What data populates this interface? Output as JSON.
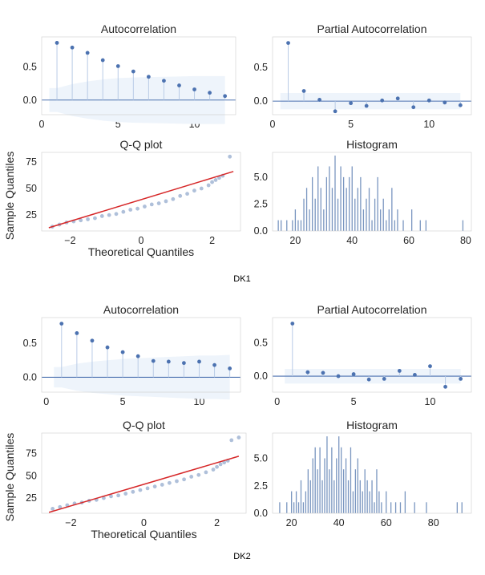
{
  "colors": {
    "point": "#4c72b0",
    "stem": "#b9cbe6",
    "band": "#eef4fb",
    "axis_line": "#8a8a8a",
    "zero_line": "#4c72b0",
    "qq_point": "#a6b9d6",
    "qq_line": "#d62728",
    "hist_bar": "#7a96c0"
  },
  "chart_data": [
    {
      "type": "scatter",
      "panel": "DK1 ACF",
      "title": "Autocorrelation",
      "x": [
        1,
        2,
        3,
        4,
        5,
        6,
        7,
        8,
        9,
        10,
        11,
        12
      ],
      "values": [
        0.86,
        0.79,
        0.71,
        0.6,
        0.51,
        0.43,
        0.35,
        0.29,
        0.22,
        0.16,
        0.11,
        0.06
      ],
      "xlim": [
        0,
        12.7
      ],
      "ylim": [
        -0.22,
        0.95
      ],
      "xticks": [
        0,
        5,
        10
      ],
      "yticks": [
        0.0,
        0.5
      ],
      "yticklabels": [
        "0.0",
        "0.5"
      ],
      "conf_band": [
        0.18,
        0.24,
        0.28,
        0.31,
        0.33,
        0.34,
        0.345,
        0.35,
        0.355,
        0.36,
        0.36,
        0.36
      ]
    },
    {
      "type": "scatter",
      "panel": "DK1 PACF",
      "title": "Partial Autocorrelation",
      "x": [
        1,
        2,
        3,
        4,
        5,
        6,
        7,
        8,
        9,
        10,
        11,
        12
      ],
      "values": [
        0.86,
        0.15,
        0.02,
        -0.15,
        -0.03,
        -0.07,
        0.01,
        0.04,
        -0.09,
        0.01,
        -0.02,
        -0.06
      ],
      "xlim": [
        0,
        12.7
      ],
      "ylim": [
        -0.2,
        0.95
      ],
      "xticks": [
        0,
        5,
        10
      ],
      "yticks": [
        0.0,
        0.5
      ],
      "yticklabels": [
        "0.0",
        "0.5"
      ],
      "conf_band": [
        0.12,
        0.12,
        0.12,
        0.12,
        0.12,
        0.12,
        0.12,
        0.12,
        0.12,
        0.12,
        0.12,
        0.12
      ]
    },
    {
      "type": "scatter",
      "panel": "DK1 QQ",
      "title": "Q-Q plot",
      "xlabel": "Theoretical Quantiles",
      "ylabel": "Sample Quantiles",
      "xlim": [
        -2.8,
        2.8
      ],
      "ylim": [
        10,
        84
      ],
      "xticks": [
        -2,
        0,
        2
      ],
      "yticks": [
        25,
        50,
        75
      ],
      "xticklabels": [
        "−2",
        "0",
        "2"
      ],
      "line": {
        "x": [
          -2.6,
          2.6
        ],
        "y": [
          13,
          66
        ]
      },
      "points": {
        "x": [
          -2.5,
          -2.3,
          -2.1,
          -1.9,
          -1.7,
          -1.5,
          -1.3,
          -1.1,
          -0.9,
          -0.7,
          -0.5,
          -0.3,
          -0.1,
          0.1,
          0.3,
          0.5,
          0.7,
          0.9,
          1.1,
          1.3,
          1.5,
          1.7,
          1.9,
          2.0,
          2.1,
          2.2,
          2.3,
          2.5
        ],
        "y": [
          14,
          16,
          18,
          19,
          20,
          21,
          22,
          24,
          25,
          26,
          28,
          30,
          31,
          33,
          35,
          36,
          38,
          40,
          43,
          45,
          48,
          50,
          53,
          56,
          58,
          60,
          62,
          80
        ]
      }
    },
    {
      "type": "bar",
      "panel": "DK1 Histogram",
      "title": "Histogram",
      "xlim": [
        12,
        82
      ],
      "ylim": [
        0,
        7.3
      ],
      "xticks": [
        20,
        40,
        60,
        80
      ],
      "yticks": [
        0.0,
        2.5,
        5.0
      ],
      "yticklabels": [
        "0.0",
        "2.5",
        "5.0"
      ],
      "bins": {
        "x": [
          14,
          15,
          17,
          19,
          20,
          21,
          22,
          23,
          24,
          25,
          26,
          27,
          28,
          29,
          30,
          31,
          32,
          33,
          34,
          35,
          36,
          37,
          38,
          39,
          40,
          41,
          42,
          43,
          44,
          45,
          46,
          47,
          48,
          49,
          50,
          51,
          52,
          53,
          54,
          55,
          56,
          58,
          61,
          64,
          66,
          79
        ],
        "height": [
          1,
          1,
          1,
          1,
          2,
          1,
          1,
          3,
          4,
          2,
          5,
          3,
          6,
          4,
          2,
          5,
          6,
          4,
          7,
          3,
          6,
          5,
          4,
          5,
          6,
          3,
          4,
          5,
          2,
          3,
          4,
          1,
          3,
          5,
          2,
          3,
          1,
          2,
          4,
          1,
          2,
          1,
          2,
          1,
          1,
          1
        ]
      }
    },
    {
      "type": "scatter",
      "panel": "DK2 ACF",
      "title": "Autocorrelation",
      "x": [
        1,
        2,
        3,
        4,
        5,
        6,
        7,
        8,
        9,
        10,
        11,
        12
      ],
      "values": [
        0.79,
        0.65,
        0.54,
        0.44,
        0.37,
        0.31,
        0.24,
        0.23,
        0.21,
        0.23,
        0.18,
        0.13
      ],
      "xlim": [
        -0.3,
        12.7
      ],
      "ylim": [
        -0.22,
        0.88
      ],
      "xticks": [
        0,
        5,
        10
      ],
      "yticks": [
        0.0,
        0.5
      ],
      "yticklabels": [
        "0.0",
        "0.5"
      ],
      "conf_band": [
        0.15,
        0.2,
        0.23,
        0.25,
        0.27,
        0.28,
        0.29,
        0.3,
        0.31,
        0.32,
        0.32,
        0.33
      ]
    },
    {
      "type": "scatter",
      "panel": "DK2 PACF",
      "title": "Partial Autocorrelation",
      "x": [
        1,
        2,
        3,
        4,
        5,
        6,
        7,
        8,
        9,
        10,
        11,
        12
      ],
      "values": [
        0.79,
        0.06,
        0.05,
        0.0,
        0.03,
        -0.05,
        -0.04,
        0.08,
        0.02,
        0.15,
        -0.16,
        -0.04
      ],
      "xlim": [
        -0.3,
        12.7
      ],
      "ylim": [
        -0.24,
        0.88
      ],
      "xticks": [
        0,
        5,
        10
      ],
      "yticks": [
        0.0,
        0.5
      ],
      "yticklabels": [
        "0.0",
        "0.5"
      ],
      "conf_band": [
        0.11,
        0.11,
        0.11,
        0.11,
        0.11,
        0.11,
        0.11,
        0.11,
        0.11,
        0.11,
        0.11,
        0.11
      ]
    },
    {
      "type": "scatter",
      "panel": "DK2 QQ",
      "title": "Q-Q plot",
      "xlabel": "Theoretical Quantiles",
      "ylabel": "Sample Quantiles",
      "xlim": [
        -2.8,
        2.8
      ],
      "ylim": [
        8,
        98
      ],
      "xticks": [
        -2,
        0,
        2
      ],
      "yticks": [
        25,
        50,
        75
      ],
      "xticklabels": [
        "−2",
        "0",
        "2"
      ],
      "line": {
        "x": [
          -2.6,
          2.6
        ],
        "y": [
          9,
          72
        ]
      },
      "points": {
        "x": [
          -2.5,
          -2.3,
          -2.1,
          -1.9,
          -1.7,
          -1.5,
          -1.3,
          -1.1,
          -0.9,
          -0.7,
          -0.5,
          -0.3,
          -0.1,
          0.1,
          0.3,
          0.5,
          0.7,
          0.9,
          1.1,
          1.3,
          1.5,
          1.7,
          1.9,
          2.0,
          2.1,
          2.2,
          2.3,
          2.4,
          2.6
        ],
        "y": [
          13,
          15,
          17,
          19,
          20,
          22,
          23,
          25,
          27,
          28,
          30,
          32,
          34,
          36,
          38,
          40,
          42,
          44,
          46,
          49,
          51,
          54,
          57,
          60,
          63,
          65,
          67,
          90,
          93
        ]
      }
    },
    {
      "type": "bar",
      "panel": "DK2 Histogram",
      "title": "Histogram",
      "xlim": [
        12,
        96
      ],
      "ylim": [
        0,
        7.3
      ],
      "xticks": [
        20,
        40,
        60,
        80
      ],
      "yticks": [
        0.0,
        2.5,
        5.0
      ],
      "yticklabels": [
        "0.0",
        "2.5",
        "5.0"
      ],
      "bins": {
        "x": [
          15,
          18,
          20,
          21,
          22,
          23,
          24,
          25,
          26,
          27,
          28,
          29,
          30,
          31,
          32,
          33,
          34,
          35,
          36,
          37,
          38,
          39,
          40,
          41,
          42,
          43,
          44,
          45,
          46,
          47,
          48,
          49,
          50,
          51,
          52,
          53,
          54,
          55,
          56,
          57,
          58,
          60,
          62,
          64,
          66,
          68,
          72,
          77,
          90,
          92
        ],
        "height": [
          1,
          1,
          2,
          1,
          2,
          1,
          3,
          1,
          2,
          4,
          3,
          5,
          6,
          4,
          6,
          3,
          5,
          7,
          4,
          6,
          3,
          5,
          7,
          6,
          4,
          5,
          3,
          6,
          2,
          4,
          5,
          3,
          2,
          4,
          3,
          2,
          3,
          1,
          4,
          2,
          1,
          2,
          1,
          1,
          1,
          2,
          1,
          1,
          1,
          1
        ]
      }
    }
  ],
  "captions": {
    "dk1": "DK1",
    "dk2": "DK2"
  }
}
